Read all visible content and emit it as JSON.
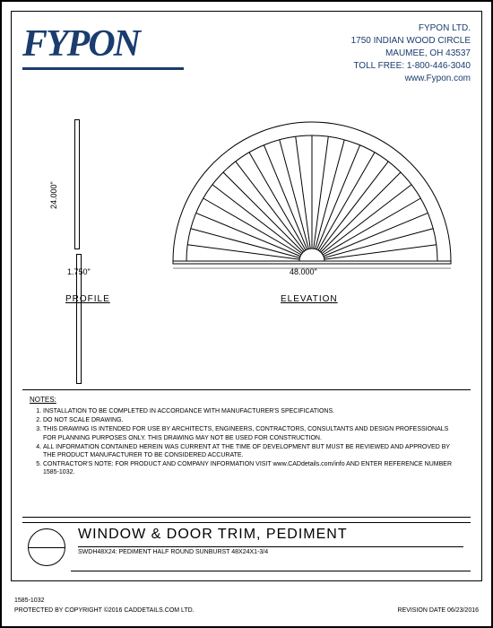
{
  "header": {
    "logo": "FYPON",
    "company_name": "FYPON LTD.",
    "address1": "1750 INDIAN WOOD CIRCLE",
    "address2": "MAUMEE, OH 43537",
    "toll_free": "TOLL FREE: 1-800-446-3040",
    "website": "www.Fypon.com"
  },
  "drawing": {
    "profile": {
      "label": "PROFILE",
      "height_dim": "24.000\"",
      "width_dim": "1.750\""
    },
    "elevation": {
      "label": "ELEVATION",
      "width_dim": "48.000\""
    },
    "sunburst": {
      "type": "half_round",
      "outer_radius": 155,
      "inner_radius": 140,
      "hub_radius": 14,
      "ray_count": 24,
      "stroke": "#000000",
      "stroke_width": 1,
      "fill": "#ffffff"
    }
  },
  "notes": {
    "title": "NOTES:",
    "items": [
      "INSTALLATION TO BE COMPLETED IN ACCORDANCE WITH MANUFACTURER'S SPECIFICATIONS.",
      "DO NOT SCALE DRAWING.",
      "THIS DRAWING IS INTENDED FOR USE BY ARCHITECTS, ENGINEERS, CONTRACTORS, CONSULTANTS AND DESIGN PROFESSIONALS FOR PLANNING PURPOSES ONLY. THIS DRAWING MAY NOT BE USED FOR CONSTRUCTION.",
      "ALL INFORMATION CONTAINED HEREIN WAS CURRENT AT THE TIME OF DEVELOPMENT BUT MUST BE REVIEWED AND APPROVED BY THE PRODUCT MANUFACTURER TO BE CONSIDERED ACCURATE.",
      "CONTRACTOR'S NOTE: FOR PRODUCT AND COMPANY INFORMATION VISIT www.CADdetails.com/info AND ENTER REFERENCE NUMBER 1585-1032."
    ]
  },
  "title_block": {
    "category": "WINDOW & DOOR TRIM, PEDIMENT",
    "description": "SWDH48X24: PEDIMENT HALF ROUND SUNBURST 48X24X1-3/4"
  },
  "footer": {
    "ref_number": "1585-1032",
    "copyright": "PROTECTED BY COPYRIGHT ©2016 CADDETAILS.COM LTD.",
    "revision": "REVISION DATE 06/23/2016"
  }
}
